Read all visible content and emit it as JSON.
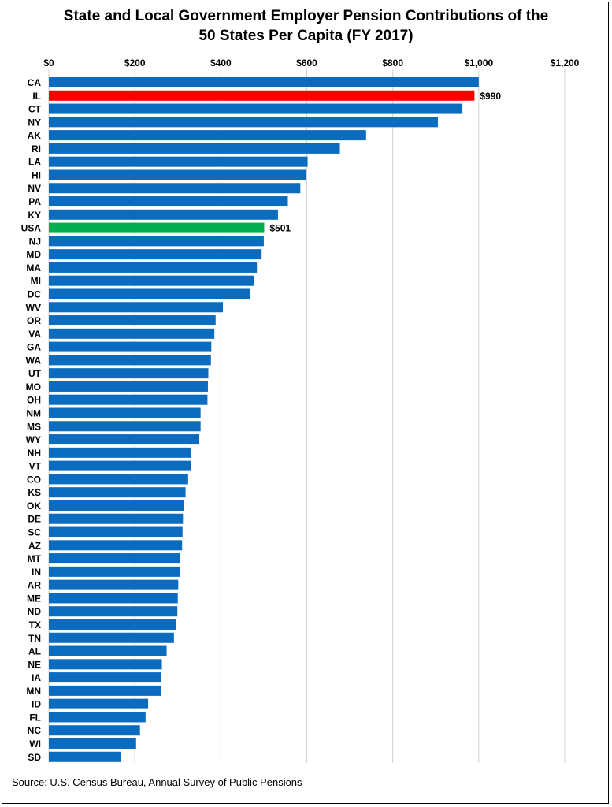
{
  "chart_data": {
    "type": "bar",
    "orientation": "horizontal",
    "title_line1": "State and Local Government Employer Pension Contributions of the",
    "title_line2": "50 States Per Capita (FY 2017)",
    "source": "Source: U.S. Census Bureau, Annual Survey of Public Pensions",
    "xlim": [
      0,
      1200
    ],
    "xtick_values": [
      0,
      200,
      400,
      600,
      800,
      1000,
      1200
    ],
    "xtick_labels": [
      "$0",
      "$200",
      "$400",
      "$600",
      "$800",
      "$1,000",
      "$1,200"
    ],
    "grid": true,
    "axis_position": "top",
    "categories": [
      "CA",
      "IL",
      "CT",
      "NY",
      "AK",
      "RI",
      "LA",
      "HI",
      "NV",
      "PA",
      "KY",
      "USA",
      "NJ",
      "MD",
      "MA",
      "MI",
      "DC",
      "WV",
      "OR",
      "VA",
      "GA",
      "WA",
      "UT",
      "MO",
      "OH",
      "NM",
      "MS",
      "WY",
      "NH",
      "VT",
      "CO",
      "KS",
      "OK",
      "DE",
      "SC",
      "AZ",
      "MT",
      "IN",
      "AR",
      "ME",
      "ND",
      "TX",
      "TN",
      "AL",
      "NE",
      "IA",
      "MN",
      "ID",
      "FL",
      "NC",
      "WI",
      "SD"
    ],
    "values": [
      1000,
      990,
      962,
      905,
      738,
      677,
      602,
      599,
      585,
      556,
      533,
      501,
      500,
      495,
      484,
      478,
      468,
      405,
      388,
      385,
      378,
      377,
      371,
      370,
      369,
      353,
      353,
      350,
      330,
      330,
      324,
      318,
      315,
      312,
      311,
      310,
      306,
      305,
      301,
      300,
      299,
      295,
      291,
      274,
      263,
      261,
      261,
      231,
      225,
      212,
      203,
      167
    ],
    "data_labels": [
      {
        "category": "IL",
        "text": "$990"
      },
      {
        "category": "USA",
        "text": "$501"
      }
    ],
    "colors": {
      "default": "#0a6bbf",
      "highlight_IL": "#ff0000",
      "highlight_USA": "#00b050",
      "grid": "#d0d0d0"
    }
  }
}
